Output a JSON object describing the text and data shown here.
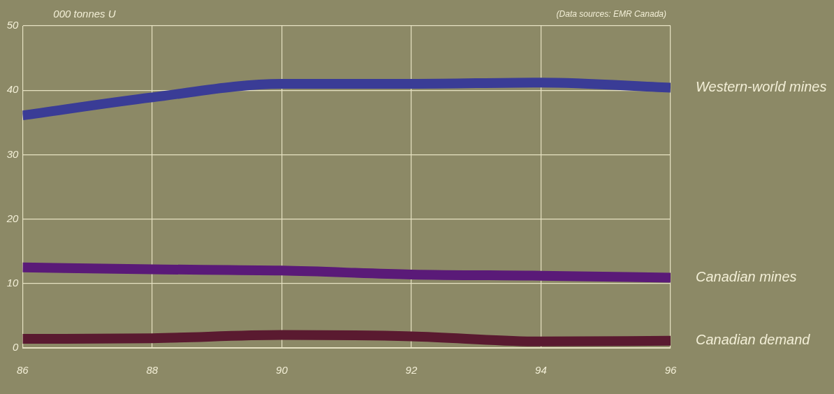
{
  "chart_data": {
    "type": "line",
    "ylabel": "000 tonnes U",
    "annotations": [
      "(Data sources: EMR Canada)"
    ],
    "x": [
      86,
      88,
      90,
      92,
      94,
      96
    ],
    "xlim": [
      86,
      96
    ],
    "xticks": [
      86,
      88,
      90,
      92,
      94,
      96
    ],
    "ylim": [
      0,
      50
    ],
    "yticks": [
      0,
      10,
      20,
      30,
      40,
      50
    ],
    "grid": true,
    "legend": false,
    "marker": "none",
    "line_style": "solid",
    "series": [
      {
        "name": "Western-world mines",
        "color": "#3a3c96",
        "values": [
          36.1,
          38.9,
          41,
          41,
          41.2,
          40.4
        ]
      },
      {
        "name": "Canadian mines",
        "color": "#5a1a78",
        "values": [
          12.5,
          12.2,
          12,
          11.4,
          11.2,
          10.9
        ]
      },
      {
        "name": "Canadian demand",
        "color": "#5a1a30",
        "values": [
          1.4,
          1.5,
          2,
          1.8,
          1,
          1.1
        ]
      }
    ]
  }
}
